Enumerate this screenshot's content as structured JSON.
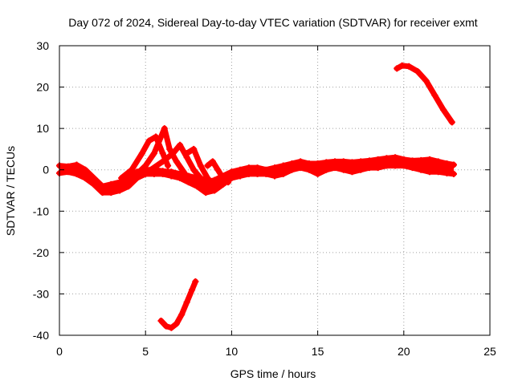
{
  "chart_data": {
    "type": "scatter",
    "title": "Day 072 of 2024, Sidereal Day-to-day VTEC variation (SDTVAR) for receiver exmt",
    "xlabel": "GPS time / hours",
    "ylabel": "SDTVAR / TECUs",
    "xlim": [
      0,
      25
    ],
    "ylim": [
      -40,
      30
    ],
    "xticks": [
      0,
      5,
      10,
      15,
      20,
      25
    ],
    "yticks": [
      -40,
      -30,
      -20,
      -10,
      0,
      10,
      20,
      30
    ],
    "grid": true,
    "legend": "none",
    "series_color": "#ff0000",
    "series": [
      {
        "name": "baseline-band-upper",
        "x": [
          0,
          0.5,
          1,
          1.5,
          2,
          2.5,
          3,
          3.5,
          4,
          4.5,
          5,
          5.5,
          6,
          6.5,
          7,
          7.5,
          8,
          8.5,
          9,
          9.5,
          10,
          10.5,
          11,
          11.5,
          12,
          12.5,
          13,
          13.5,
          14,
          14.5,
          15,
          15.5,
          16,
          16.5,
          17,
          17.5,
          18,
          18.5,
          19,
          19.5,
          20,
          20.5,
          21,
          21.5,
          22,
          22.5,
          22.9
        ],
        "y": [
          1,
          0.8,
          1.2,
          0,
          -2,
          -4,
          -3.5,
          -3,
          -1.5,
          -0.5,
          0,
          0,
          -0.3,
          -0.5,
          -1,
          -1.5,
          -2,
          -3,
          -2.5,
          -1.5,
          -0.5,
          0,
          0.5,
          0.5,
          0,
          0.5,
          1,
          1.5,
          2,
          1.5,
          1.5,
          1.8,
          2,
          2,
          1.8,
          2,
          2.2,
          2.5,
          2.8,
          3,
          2.5,
          2.2,
          2.3,
          2.5,
          2,
          1.5,
          1.2
        ]
      },
      {
        "name": "baseline-band-lower",
        "x": [
          0,
          0.5,
          1,
          1.5,
          2,
          2.5,
          3,
          3.5,
          4,
          4.5,
          5,
          5.5,
          6,
          6.5,
          7,
          7.5,
          8,
          8.5,
          9,
          9.5,
          10,
          10.5,
          11,
          11.5,
          12,
          12.5,
          13,
          13.5,
          14,
          14.5,
          15,
          15.5,
          16,
          16.5,
          17,
          17.5,
          18,
          18.5,
          19,
          19.5,
          20,
          20.5,
          21,
          21.5,
          22,
          22.5,
          22.9
        ],
        "y": [
          -0.8,
          -0.5,
          -1,
          -2,
          -3.5,
          -5.5,
          -5.5,
          -5,
          -4,
          -2,
          -1,
          -1,
          -1,
          -1.5,
          -2,
          -3,
          -4,
          -5.5,
          -5,
          -3.5,
          -2,
          -1.5,
          -1,
          -1,
          -1,
          -1.5,
          -1,
          0,
          0.5,
          0,
          -1,
          0,
          0.5,
          0,
          -0.5,
          0,
          0.5,
          0.5,
          1,
          1,
          1,
          0.5,
          0,
          -0.5,
          -0.5,
          -0.8,
          -1
        ]
      },
      {
        "name": "spike-1",
        "x": [
          3.6,
          4.2,
          4.8,
          5.2,
          5.6,
          6,
          6.3
        ],
        "y": [
          -2,
          0,
          4,
          7,
          8,
          4,
          1
        ]
      },
      {
        "name": "spike-2",
        "x": [
          4.5,
          5,
          5.5,
          5.9,
          6.1,
          6.4,
          6.8,
          7.3
        ],
        "y": [
          -1,
          1,
          4,
          8,
          10,
          5,
          2,
          -1
        ]
      },
      {
        "name": "spike-3",
        "x": [
          5.3,
          6,
          6.6,
          7,
          7.4,
          7.8,
          8.2,
          8.6
        ],
        "y": [
          0,
          2,
          4,
          6,
          3,
          0,
          -2,
          -3
        ]
      },
      {
        "name": "spike-4",
        "x": [
          7.4,
          7.8,
          8.2,
          8.6,
          9
        ],
        "y": [
          4,
          5,
          1,
          -2,
          -4
        ]
      },
      {
        "name": "spike-5",
        "x": [
          8.6,
          8.9,
          9.2,
          9.5,
          9.8
        ],
        "y": [
          1,
          2,
          0,
          -2,
          -3
        ]
      },
      {
        "name": "arc-high",
        "x": [
          19.6,
          19.9,
          20.3,
          20.8,
          21.3,
          21.8,
          22.3,
          22.8
        ],
        "y": [
          24.5,
          25.2,
          25,
          23.8,
          21.5,
          18,
          14.5,
          11.5
        ]
      },
      {
        "name": "arc-low",
        "x": [
          5.9,
          6.2,
          6.5,
          6.8,
          7.1,
          7.4,
          7.7,
          7.9
        ],
        "y": [
          -36.5,
          -37.8,
          -38.2,
          -37.2,
          -35,
          -32,
          -29,
          -27
        ]
      }
    ]
  }
}
